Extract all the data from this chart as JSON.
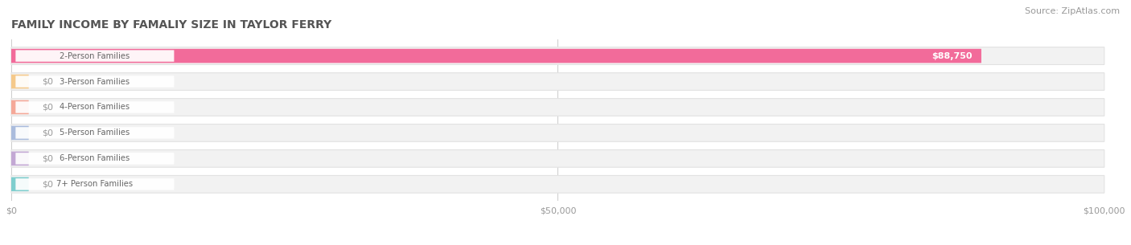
{
  "title": "FAMILY INCOME BY FAMALIY SIZE IN TAYLOR FERRY",
  "source": "Source: ZipAtlas.com",
  "categories": [
    "2-Person Families",
    "3-Person Families",
    "4-Person Families",
    "5-Person Families",
    "6-Person Families",
    "7+ Person Families"
  ],
  "values": [
    88750,
    0,
    0,
    0,
    0,
    0
  ],
  "bar_colors": [
    "#f26b9a",
    "#f5c98a",
    "#f5a898",
    "#aabcdd",
    "#c3a8d4",
    "#7ecece"
  ],
  "track_facecolor": "#f2f2f2",
  "track_edgecolor": "#e2e2e2",
  "xlim": [
    0,
    100000
  ],
  "xticks": [
    0,
    50000,
    100000
  ],
  "xticklabels": [
    "$0",
    "$50,000",
    "$100,000"
  ],
  "title_fontsize": 10,
  "source_fontsize": 8,
  "background_color": "#ffffff",
  "grid_color": "#cccccc",
  "tick_label_color": "#999999",
  "category_label_color": "#666666",
  "zero_label_color": "#999999",
  "value_label_color": "#ffffff"
}
